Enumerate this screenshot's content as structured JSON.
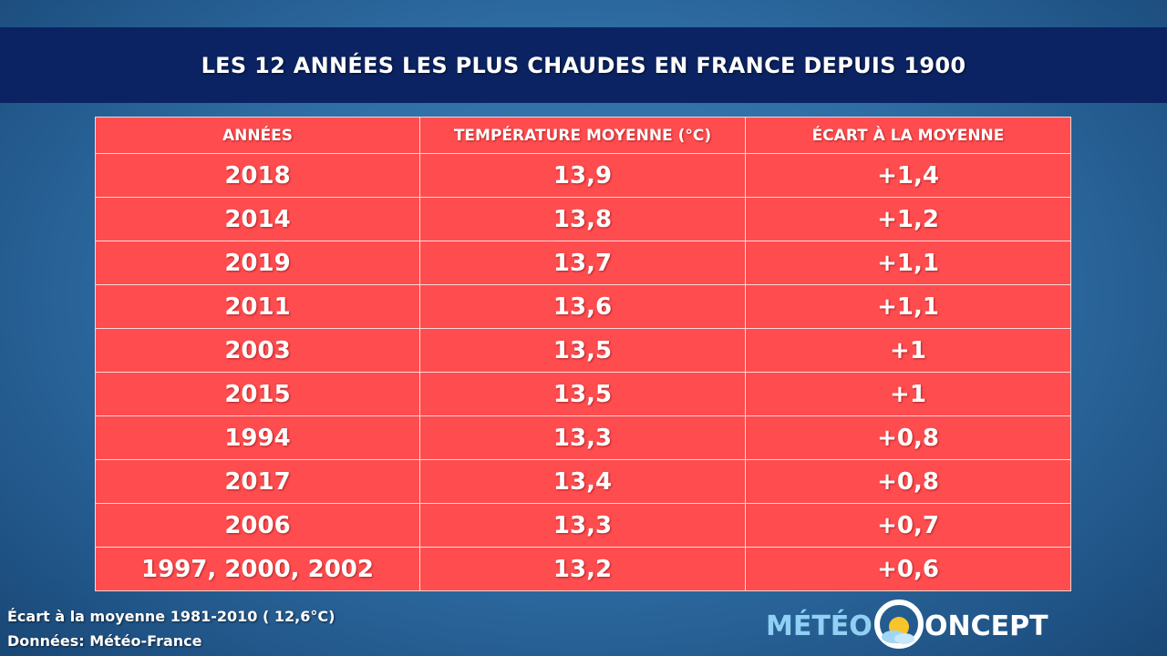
{
  "header": {
    "title": "LES 12 ANNÉES LES PLUS CHAUDES EN FRANCE DEPUIS 1900"
  },
  "chart_data": {
    "type": "table",
    "title": "LES 12 ANNÉES LES PLUS CHAUDES EN FRANCE DEPUIS 1900",
    "columns": [
      "ANNÉES",
      "TEMPÉRATURE MOYENNE (°C)",
      "ÉCART À LA MOYENNE"
    ],
    "rows": [
      [
        "2018",
        "13,9",
        "+1,4"
      ],
      [
        "2014",
        "13,8",
        "+1,2"
      ],
      [
        "2019",
        "13,7",
        "+1,1"
      ],
      [
        "2011",
        "13,6",
        "+1,1"
      ],
      [
        "2003",
        "13,5",
        "+1"
      ],
      [
        "2015",
        "13,5",
        "+1"
      ],
      [
        "1994",
        "13,3",
        "+0,8"
      ],
      [
        "2017",
        "13,4",
        "+0,8"
      ],
      [
        "2006",
        "13,3",
        "+0,7"
      ],
      [
        "1997, 2000, 2002",
        "13,2",
        "+0,6"
      ]
    ]
  },
  "footer": {
    "note": "Écart à la moyenne 1981-2010 ( 12,6°C)",
    "source": "Données: Météo-France"
  },
  "logo": {
    "text_left": "MÉTÉO",
    "text_right": "ONCEPT"
  },
  "colors": {
    "banner": "#0b2362",
    "table_fill": "#ff4c4f",
    "grid_lines": "#ffd8d8",
    "logo_light_blue": "#8fd0f4",
    "logo_white": "#ffffff",
    "sun": "#f7c52a",
    "background": "#2f6ea5"
  },
  "icons": [
    "sun-cloud-icon"
  ]
}
